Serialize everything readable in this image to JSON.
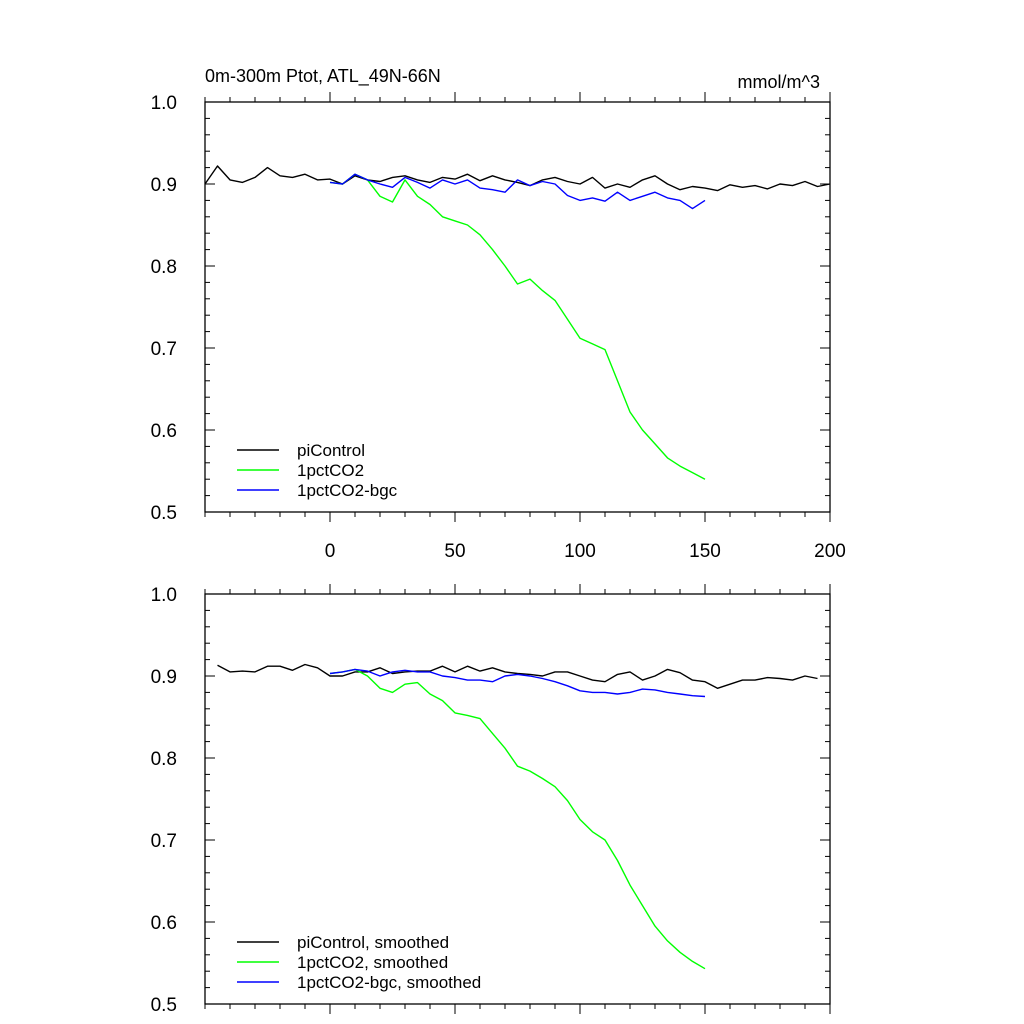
{
  "chart_data": [
    {
      "type": "line",
      "title": "0m-300m Ptot, ATL_49N-66N",
      "units": "mmol/m^3",
      "xlim": [
        -50,
        200
      ],
      "ylim": [
        0.5,
        1.0
      ],
      "xticks": [
        0,
        50,
        100,
        150,
        200
      ],
      "yticks": [
        0.5,
        0.6,
        0.7,
        0.8,
        0.9,
        1.0
      ],
      "show_x_tick_labels": true,
      "legend_position": "bottom-left",
      "series": [
        {
          "name": "piControl",
          "color": "#000000",
          "x": [
            -50,
            -45,
            -40,
            -35,
            -30,
            -25,
            -20,
            -15,
            -10,
            -5,
            0,
            5,
            10,
            15,
            20,
            25,
            30,
            35,
            40,
            45,
            50,
            55,
            60,
            65,
            70,
            75,
            80,
            85,
            90,
            95,
            100,
            105,
            110,
            115,
            120,
            125,
            130,
            135,
            140,
            145,
            150,
            155,
            160,
            165,
            170,
            175,
            180,
            185,
            190,
            195,
            200
          ],
          "y": [
            0.9,
            0.922,
            0.905,
            0.902,
            0.908,
            0.92,
            0.91,
            0.908,
            0.912,
            0.905,
            0.906,
            0.9,
            0.91,
            0.905,
            0.903,
            0.908,
            0.91,
            0.905,
            0.902,
            0.908,
            0.906,
            0.912,
            0.904,
            0.91,
            0.905,
            0.902,
            0.898,
            0.905,
            0.908,
            0.903,
            0.9,
            0.908,
            0.895,
            0.9,
            0.896,
            0.905,
            0.91,
            0.9,
            0.893,
            0.897,
            0.895,
            0.892,
            0.899,
            0.896,
            0.898,
            0.894,
            0.9,
            0.898,
            0.903,
            0.897,
            0.9
          ]
        },
        {
          "name": "1pctCO2",
          "color": "#00ff00",
          "x": [
            0,
            5,
            10,
            15,
            20,
            25,
            30,
            35,
            40,
            45,
            50,
            55,
            60,
            65,
            70,
            75,
            80,
            85,
            90,
            95,
            100,
            105,
            110,
            115,
            120,
            125,
            130,
            135,
            140,
            145,
            150
          ],
          "y": [
            0.902,
            0.9,
            0.912,
            0.905,
            0.885,
            0.878,
            0.905,
            0.885,
            0.875,
            0.86,
            0.855,
            0.85,
            0.838,
            0.82,
            0.8,
            0.778,
            0.784,
            0.77,
            0.758,
            0.735,
            0.712,
            0.705,
            0.698,
            0.66,
            0.622,
            0.6,
            0.583,
            0.566,
            0.556,
            0.548,
            0.54
          ]
        },
        {
          "name": "1pctCO2-bgc",
          "color": "#0000ff",
          "x": [
            0,
            5,
            10,
            15,
            20,
            25,
            30,
            35,
            40,
            45,
            50,
            55,
            60,
            65,
            70,
            75,
            80,
            85,
            90,
            95,
            100,
            105,
            110,
            115,
            120,
            125,
            130,
            135,
            140,
            145,
            150
          ],
          "y": [
            0.902,
            0.9,
            0.912,
            0.905,
            0.9,
            0.896,
            0.908,
            0.902,
            0.895,
            0.905,
            0.9,
            0.905,
            0.895,
            0.893,
            0.89,
            0.905,
            0.898,
            0.903,
            0.9,
            0.886,
            0.88,
            0.883,
            0.879,
            0.89,
            0.88,
            0.885,
            0.89,
            0.883,
            0.88,
            0.87,
            0.88
          ]
        }
      ]
    },
    {
      "type": "line",
      "xlim": [
        -50,
        200
      ],
      "ylim": [
        0.5,
        1.0
      ],
      "xticks": [
        0,
        50,
        100,
        150,
        200
      ],
      "yticks": [
        0.5,
        0.6,
        0.7,
        0.8,
        0.9,
        1.0
      ],
      "show_x_tick_labels": false,
      "legend_position": "bottom-left",
      "series": [
        {
          "name": "piControl, smoothed",
          "color": "#000000",
          "x": [
            -45,
            -40,
            -35,
            -30,
            -25,
            -20,
            -15,
            -10,
            -5,
            0,
            5,
            10,
            15,
            20,
            25,
            30,
            35,
            40,
            45,
            50,
            55,
            60,
            65,
            70,
            75,
            80,
            85,
            90,
            95,
            100,
            105,
            110,
            115,
            120,
            125,
            130,
            135,
            140,
            145,
            150,
            155,
            160,
            165,
            170,
            175,
            180,
            185,
            190,
            195
          ],
          "y": [
            0.913,
            0.905,
            0.906,
            0.905,
            0.912,
            0.912,
            0.907,
            0.914,
            0.91,
            0.9,
            0.9,
            0.905,
            0.905,
            0.91,
            0.903,
            0.905,
            0.906,
            0.906,
            0.912,
            0.905,
            0.912,
            0.906,
            0.91,
            0.905,
            0.903,
            0.902,
            0.9,
            0.905,
            0.905,
            0.9,
            0.895,
            0.893,
            0.902,
            0.905,
            0.895,
            0.9,
            0.908,
            0.904,
            0.895,
            0.893,
            0.885,
            0.89,
            0.895,
            0.895,
            0.898,
            0.897,
            0.895,
            0.9,
            0.897
          ]
        },
        {
          "name": "1pctCO2, smoothed",
          "color": "#00ff00",
          "x": [
            0,
            5,
            10,
            15,
            20,
            25,
            30,
            35,
            40,
            45,
            50,
            55,
            60,
            65,
            70,
            75,
            80,
            85,
            90,
            95,
            100,
            105,
            110,
            115,
            120,
            125,
            130,
            135,
            140,
            145,
            150
          ],
          "y": [
            0.903,
            0.905,
            0.908,
            0.9,
            0.885,
            0.88,
            0.89,
            0.892,
            0.878,
            0.87,
            0.855,
            0.852,
            0.848,
            0.83,
            0.812,
            0.79,
            0.784,
            0.775,
            0.765,
            0.748,
            0.725,
            0.71,
            0.7,
            0.675,
            0.645,
            0.62,
            0.595,
            0.577,
            0.563,
            0.552,
            0.543
          ]
        },
        {
          "name": "1pctCO2-bgc, smoothed",
          "color": "#0000ff",
          "x": [
            0,
            5,
            10,
            15,
            20,
            25,
            30,
            35,
            40,
            45,
            50,
            55,
            60,
            65,
            70,
            75,
            80,
            85,
            90,
            95,
            100,
            105,
            110,
            115,
            120,
            125,
            130,
            135,
            140,
            145,
            150
          ],
          "y": [
            0.903,
            0.905,
            0.908,
            0.906,
            0.9,
            0.905,
            0.907,
            0.905,
            0.905,
            0.9,
            0.898,
            0.895,
            0.895,
            0.893,
            0.9,
            0.902,
            0.9,
            0.897,
            0.893,
            0.888,
            0.882,
            0.88,
            0.88,
            0.878,
            0.88,
            0.884,
            0.883,
            0.88,
            0.878,
            0.876,
            0.875
          ]
        }
      ]
    }
  ]
}
